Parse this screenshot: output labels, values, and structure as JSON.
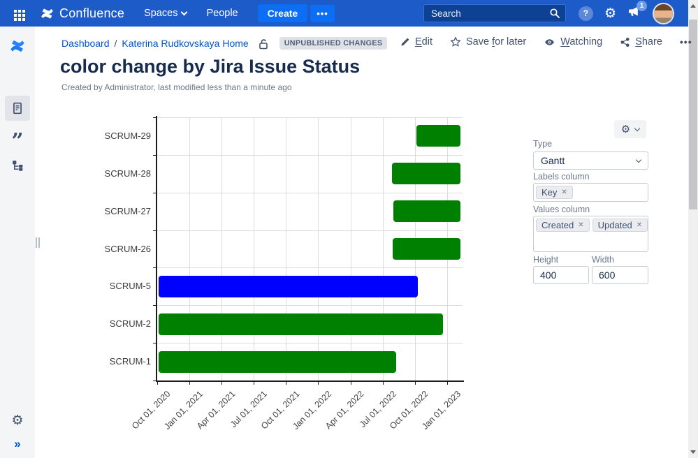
{
  "header": {
    "app_name": "Confluence",
    "nav": [
      {
        "label": "Spaces"
      },
      {
        "label": "People"
      }
    ],
    "create_label": "Create",
    "more_label": "•••",
    "search_placeholder": "Search",
    "notification_count": "1"
  },
  "breadcrumb": {
    "items": [
      "Dashboard",
      "Katerina Rudkovskaya Home"
    ],
    "separator": "/",
    "status_badge": "UNPUBLISHED CHANGES"
  },
  "actions": [
    {
      "label": "Edit",
      "underline_index": 0,
      "icon": "pencil"
    },
    {
      "label": "Save for later",
      "underline_index": 5,
      "icon": "star"
    },
    {
      "label": "Watching",
      "underline_index": 0,
      "icon": "eye"
    },
    {
      "label": "Share",
      "underline_index": 0,
      "icon": "share"
    }
  ],
  "actions_more": "•••",
  "page": {
    "title": "color change by Jira Issue Status",
    "byline": "Created by Administrator, last modified less than a minute ago"
  },
  "panel": {
    "type_label": "Type",
    "type_value": "Gantt",
    "labels_column_label": "Labels column",
    "labels_chips": [
      "Key"
    ],
    "values_column_label": "Values column",
    "values_chips": [
      "Created",
      "Updated"
    ],
    "height_label": "Height",
    "height_value": "400",
    "width_label": "Width",
    "width_value": "600"
  },
  "chart_data": {
    "type": "bar",
    "subtype": "gantt",
    "orientation": "horizontal",
    "title": "",
    "grid": true,
    "legend": false,
    "x_axis": {
      "origin_date": "2020-10-01",
      "tick_interval_months": 3,
      "tick_labels": [
        "Oct 01, 2020",
        "Jan 01, 2021",
        "Apr 01, 2021",
        "Jul 01, 2021",
        "Oct 01, 2021",
        "Jan 01, 2022",
        "Apr 01, 2022",
        "Jul 01, 2022",
        "Oct 01, 2022",
        "Jan 01, 2023"
      ],
      "tick_rotation_deg": -45,
      "domain_months": [
        0,
        28.44
      ]
    },
    "bars": [
      {
        "label": "SCRUM-29",
        "start_month": 24.08,
        "end_month": 28.18,
        "start_date_est": "2022-10-03",
        "end_date_est": "2023-02-06",
        "color": "#008000"
      },
      {
        "label": "SCRUM-28",
        "start_month": 21.8,
        "end_month": 28.18,
        "start_date_est": "2022-07-25",
        "end_date_est": "2023-02-06",
        "color": "#008000"
      },
      {
        "label": "SCRUM-27",
        "start_month": 21.93,
        "end_month": 28.18,
        "start_date_est": "2022-07-29",
        "end_date_est": "2023-02-06",
        "color": "#008000"
      },
      {
        "label": "SCRUM-26",
        "start_month": 21.86,
        "end_month": 28.18,
        "start_date_est": "2022-07-27",
        "end_date_est": "2023-02-06",
        "color": "#008000"
      },
      {
        "label": "SCRUM-5",
        "start_month": 0.07,
        "end_month": 24.2,
        "start_date_est": "2020-10-03",
        "end_date_est": "2022-10-07",
        "color": "#0000FF"
      },
      {
        "label": "SCRUM-2",
        "start_month": 0.07,
        "end_month": 26.55,
        "start_date_est": "2020-10-03",
        "end_date_est": "2022-12-17",
        "color": "#008000"
      },
      {
        "label": "SCRUM-1",
        "start_month": 0.07,
        "end_month": 22.19,
        "start_date_est": "2020-10-03",
        "end_date_est": "2022-08-06",
        "color": "#008000"
      }
    ]
  },
  "colors": {
    "header_bg": "#1D5CC8",
    "create_button": "#0B6EF5",
    "search_bg": "#0C4194",
    "link": "#0052CC",
    "title_text": "#172B4D",
    "muted_text": "#6B778C",
    "action_text": "#42526E",
    "badge_bg": "#DFE1E6",
    "sidebar_bg": "#F4F5F7",
    "bar_green": "#008000",
    "bar_blue": "#0000FF",
    "grid_line": "#DCDCDC",
    "axis": "#1A1A1A"
  },
  "icon_glyphs": {
    "settings": "⚙",
    "help": "?",
    "chip_remove": "✕",
    "sidebar_expand": "»",
    "quote": "”"
  }
}
